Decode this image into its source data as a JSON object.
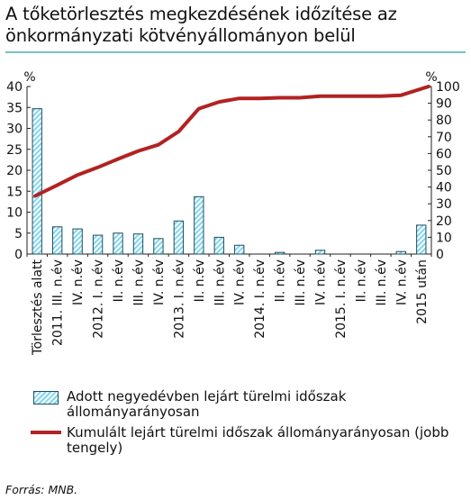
{
  "title": "A tőketörlesztés megkezdésének időzítése az önkormányzati kötvényállományon belül",
  "source": "Forrás: MNB.",
  "colors": {
    "bar_fill": "#7fd6f0",
    "bar_stroke": "#1f4e5a",
    "line": "#b22222",
    "title_rule": "#7fbfbf"
  },
  "chart_data": {
    "type": "bar",
    "categories": [
      "Törlesztés alatt",
      "2011. III. n.év",
      "IV. n.év",
      "2012. I. n.év",
      "II. n.év",
      "III. n.év",
      "IV. n.év",
      "2013. I. n.év",
      "II. n.év",
      "III. n.év",
      "IV. n.év",
      "2014. I. n.év",
      "II. n.év",
      "III. n.év",
      "IV. n.év",
      "2015. I. n.év",
      "II. n.év",
      "III. n.év",
      "IV. n.év",
      "2015 után"
    ],
    "series": [
      {
        "name": "Adott negyedévben lejárt türelmi időszak állományarányosan",
        "type": "bar",
        "axis": "left",
        "values": [
          34.7,
          6.5,
          6.0,
          4.5,
          5.0,
          4.8,
          3.7,
          7.9,
          13.7,
          4.0,
          2.1,
          0.0,
          0.4,
          0.0,
          0.9,
          0.0,
          0.0,
          0.0,
          0.6,
          6.9
        ]
      },
      {
        "name": "Kumulált lejárt türelmi időszak állományarányosan (jobb tengely)",
        "type": "line",
        "axis": "right",
        "values": [
          34.7,
          41.2,
          47.2,
          51.7,
          56.7,
          61.5,
          65.2,
          73.1,
          86.8,
          90.8,
          92.9,
          92.9,
          93.3,
          93.3,
          94.2,
          94.2,
          94.2,
          94.2,
          94.8,
          100
        ]
      }
    ],
    "y_left": {
      "unit": "%",
      "min": 0,
      "max": 40,
      "ticks": [
        0,
        5,
        10,
        15,
        20,
        25,
        30,
        35,
        40
      ]
    },
    "y_right": {
      "unit": "%",
      "min": 0,
      "max": 100,
      "ticks": [
        0,
        10,
        20,
        30,
        40,
        50,
        60,
        70,
        80,
        90,
        100
      ]
    },
    "x_labels_visible": [
      "Törlesztés alatt",
      "2011. III. n.év",
      "IV. n.év",
      "2012. I. n.év",
      "II. n.év",
      "III. n.év",
      "IV. n.év",
      "2013. I. n.év",
      "II. n.év",
      "III. n.év",
      "IV. n.év",
      "2014. I. n.év",
      "II. n.év",
      "III. n.év",
      "IV. n.év",
      "2015. I. n.év",
      "II. n.év",
      "III. n.év",
      "IV. n.év",
      "2015 után"
    ],
    "grid": false,
    "legend_position": "bottom"
  },
  "legend": {
    "bar_label": "Adott negyedévben lejárt türelmi időszak állományarányosan",
    "line_label": "Kumulált lejárt türelmi időszak állományarányosan (jobb tengely)"
  }
}
